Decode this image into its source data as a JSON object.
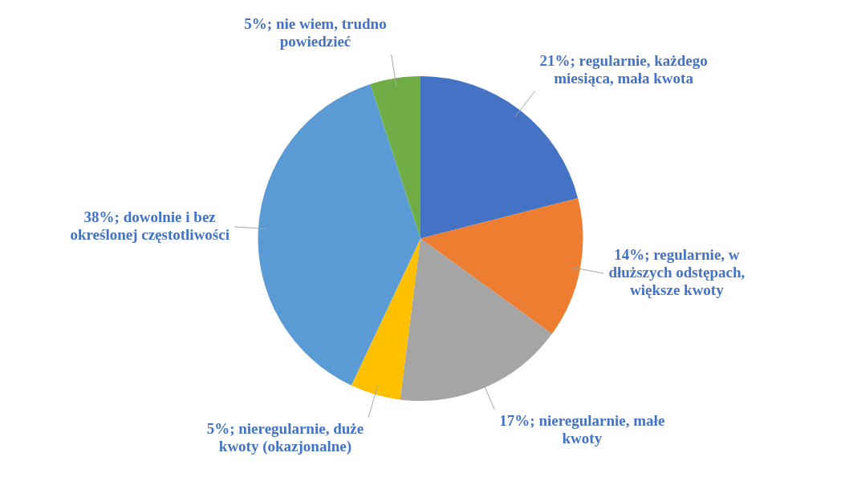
{
  "chart_data": {
    "type": "pie",
    "categories": [
      "regularnie, każdego miesiąca, mała kwota",
      "regularnie, w dłuższych odstępach, większe kwoty",
      "nieregularnie, małe kwoty",
      "nieregularnie, duże kwoty (okazjonalne)",
      "dowolnie i bez określonej częstotliwości",
      "nie wiem, trudno powiedzieć"
    ],
    "values": [
      21,
      14,
      17,
      5,
      38,
      5
    ],
    "value_labels": [
      "21%",
      "14%",
      "17%",
      "5%",
      "38%",
      "5%"
    ],
    "colors": [
      "#4472c4",
      "#ed7d31",
      "#a5a5a5",
      "#ffc000",
      "#5b9bd5",
      "#70ad47"
    ],
    "legend": false
  }
}
